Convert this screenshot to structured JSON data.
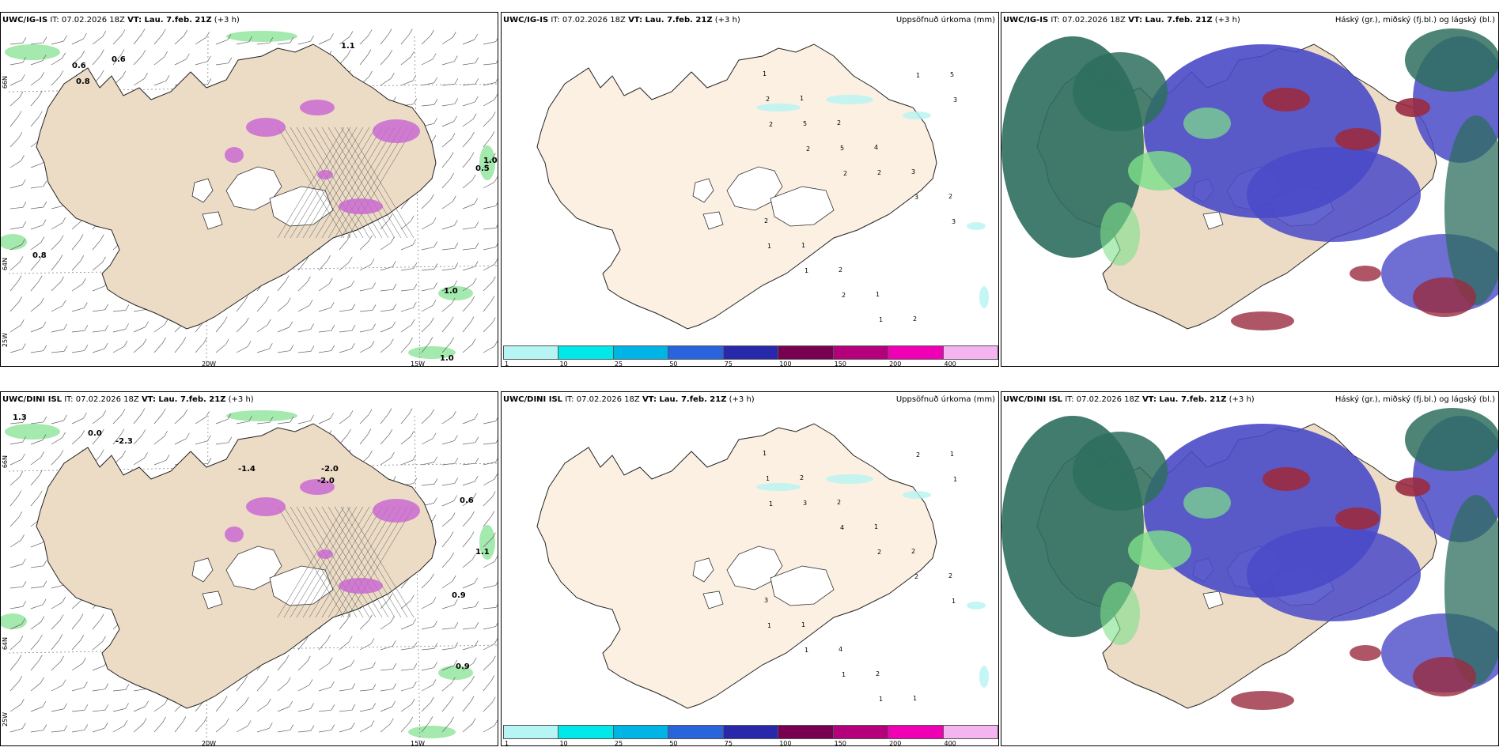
{
  "panels": [
    {
      "model": "UWC/IG-IS",
      "it": "IT: 07.02.2026 18Z",
      "vt_label": "VT: Lau. 7.feb. 21Z",
      "lead": "(+3 h)",
      "right_title": ""
    },
    {
      "model": "UWC/IG-IS",
      "it": "IT: 07.02.2026 18Z",
      "vt_label": "VT: Lau. 7.feb. 21Z",
      "lead": "(+3 h)",
      "right_title": "Uppsöfnuð úrkoma (mm)"
    },
    {
      "model": "UWC/IG-IS",
      "it": "IT: 07.02.2026 18Z",
      "vt_label": "VT: Lau. 7.feb. 21Z",
      "lead": "(+3 h)",
      "right_title": "Háský (gr.), miðský (fj.bl.) og lágský (bl.)"
    },
    {
      "model": "UWC/DINI ISL",
      "it": "IT: 07.02.2026 18Z",
      "vt_label": "VT: Lau. 7.feb. 21Z",
      "lead": "(+3 h)",
      "right_title": ""
    },
    {
      "model": "UWC/DINI ISL",
      "it": "IT: 07.02.2026 18Z",
      "vt_label": "VT: Lau. 7.feb. 21Z",
      "lead": "(+3 h)",
      "right_title": "Uppsöfnuð úrkoma (mm)"
    },
    {
      "model": "UWC/DINI ISL",
      "it": "IT: 07.02.2026 18Z",
      "vt_label": "VT: Lau. 7.feb. 21Z",
      "lead": "(+3 h)",
      "right_title": "Háský (gr.), miðský (fj.bl.) og lágský (bl.)"
    }
  ],
  "axis_labels": {
    "lon_20w": "20W",
    "lon_15w": "15W",
    "lon_25w": "25W",
    "lat_66n": "66N",
    "lat_64n": "64N"
  },
  "legend": {
    "labels": [
      "1",
      "10",
      "25",
      "50",
      "75",
      "100",
      "150",
      "200",
      "400"
    ],
    "colors": [
      "#b7f4f4",
      "#00e8e8",
      "#00b4e6",
      "#2a64dc",
      "#2828aa",
      "#780050",
      "#b4007a",
      "#f000b4",
      "#f4b4f0"
    ]
  },
  "precip_values_top": [
    {
      "v": "1"
    },
    {
      "v": "1"
    },
    {
      "v": "2"
    },
    {
      "v": "4"
    },
    {
      "v": "3"
    },
    {
      "v": "2"
    },
    {
      "v": "2"
    },
    {
      "v": "1"
    },
    {
      "v": "2"
    },
    {
      "v": "1"
    },
    {
      "v": "2"
    },
    {
      "v": "5"
    },
    {
      "v": "2"
    },
    {
      "v": "5"
    },
    {
      "v": "5"
    },
    {
      "v": "2"
    },
    {
      "v": "3"
    },
    {
      "v": "3"
    },
    {
      "v": "1"
    },
    {
      "v": "1"
    },
    {
      "v": "2"
    },
    {
      "v": "1"
    },
    {
      "v": "1"
    },
    {
      "v": "3"
    },
    {
      "v": "2"
    },
    {
      "v": "2"
    },
    {
      "v": "2"
    }
  ],
  "precip_values_bottom": [
    {
      "v": "1"
    },
    {
      "v": "2"
    },
    {
      "v": "2"
    },
    {
      "v": "1"
    },
    {
      "v": "2"
    },
    {
      "v": "2"
    },
    {
      "v": "3"
    },
    {
      "v": "1"
    },
    {
      "v": "4"
    },
    {
      "v": "2"
    },
    {
      "v": "1"
    },
    {
      "v": "1"
    },
    {
      "v": "1"
    },
    {
      "v": "3"
    },
    {
      "v": "4"
    },
    {
      "v": "2"
    },
    {
      "v": "2"
    },
    {
      "v": "1"
    },
    {
      "v": "1"
    },
    {
      "v": "1"
    },
    {
      "v": "1"
    },
    {
      "v": "1"
    },
    {
      "v": "2"
    },
    {
      "v": "1"
    },
    {
      "v": "1"
    }
  ],
  "temp_labels_top": [
    "0.6",
    "0.8",
    "0.6",
    "1.1",
    "0.8",
    "0.5",
    "1.0",
    "1.0",
    "1.0"
  ],
  "temp_labels_bottom": [
    "1.3",
    "0.0",
    "-2.3",
    "-1.4",
    "-2.0",
    "-2.0",
    "0.6",
    "1.1",
    "0.9",
    "0.9"
  ],
  "colors": {
    "land": "#ecdcc6",
    "land_precip": "#fbf0e2",
    "ocean": "#ffffff",
    "snow_purple": "#c864d2",
    "cloud_high": "#2e6e5e",
    "cloud_mid": "#4a4ac8",
    "cloud_low": "#9a2a40",
    "green": "#7ee08a"
  }
}
